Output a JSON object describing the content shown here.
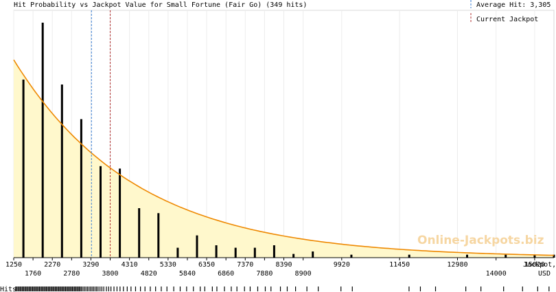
{
  "chart_data": {
    "type": "bar",
    "title": "Hit Probability vs Jackpot Value for Small Fortune (Fair Go) (349 hits)",
    "legend": {
      "position": "top-right",
      "items": [
        {
          "label": "Average Hit: 3,305",
          "color": "#3a7fd5",
          "style": "dashed"
        },
        {
          "label": "Current Jackpot",
          "color": "#b03030",
          "style": "dashed"
        }
      ]
    },
    "xlabel_line1": "Jackpot,",
    "xlabel_line2": "USD",
    "xlim": [
      1250,
      15530
    ],
    "ylim": [
      0,
      1
    ],
    "x_ticks_row1": [
      "1250",
      "2270",
      "3290",
      "4310",
      "5330",
      "6350",
      "7370",
      "8390",
      "9920",
      "11450",
      "12980",
      "15020"
    ],
    "x_ticks_row2": [
      "1760",
      "2780",
      "3800",
      "4820",
      "5840",
      "6860",
      "7880",
      "8900",
      "14000"
    ],
    "hits_label": "Hits",
    "watermark": "Online-Jackpots.biz",
    "average_hit": 3305,
    "current_jackpot": 3800,
    "colors": {
      "bar": "#000000",
      "curve": "#ee8800",
      "fill": "#fff8cc",
      "average_line": "#3a7fd5",
      "current_line": "#b03030"
    },
    "curve": {
      "start": 1.0,
      "decay_per_1000": 0.31
    },
    "bars": [
      {
        "x": 1505,
        "value": 0.72
      },
      {
        "x": 2015,
        "value": 0.95
      },
      {
        "x": 2525,
        "value": 0.7
      },
      {
        "x": 3035,
        "value": 0.56
      },
      {
        "x": 3545,
        "value": 0.37
      },
      {
        "x": 4055,
        "value": 0.36
      },
      {
        "x": 4565,
        "value": 0.2
      },
      {
        "x": 5075,
        "value": 0.18
      },
      {
        "x": 5585,
        "value": 0.04
      },
      {
        "x": 6095,
        "value": 0.09
      },
      {
        "x": 6605,
        "value": 0.05
      },
      {
        "x": 7115,
        "value": 0.04
      },
      {
        "x": 7625,
        "value": 0.04
      },
      {
        "x": 8135,
        "value": 0.05
      },
      {
        "x": 8645,
        "value": 0.015
      },
      {
        "x": 9155,
        "value": 0.025
      },
      {
        "x": 10175,
        "value": 0.012
      },
      {
        "x": 11705,
        "value": 0.012
      },
      {
        "x": 13235,
        "value": 0.012
      },
      {
        "x": 14255,
        "value": 0.012
      },
      {
        "x": 15020,
        "value": 0.012
      },
      {
        "x": 15530,
        "value": 0.012
      }
    ],
    "hit_values": [
      1300,
      1330,
      1360,
      1390,
      1420,
      1450,
      1480,
      1510,
      1540,
      1570,
      1600,
      1630,
      1660,
      1690,
      1720,
      1750,
      1780,
      1810,
      1840,
      1870,
      1900,
      1930,
      1960,
      1990,
      2020,
      2050,
      2080,
      2110,
      2140,
      2170,
      2200,
      2230,
      2260,
      2290,
      2320,
      2350,
      2380,
      2410,
      2440,
      2470,
      2500,
      2530,
      2560,
      2590,
      2620,
      2650,
      2680,
      2710,
      2740,
      2770,
      2800,
      2830,
      2860,
      2890,
      2920,
      2950,
      2980,
      3010,
      3040,
      3080,
      3120,
      3160,
      3200,
      3240,
      3280,
      3320,
      3360,
      3400,
      3440,
      3480,
      3530,
      3580,
      3630,
      3700,
      3760,
      3820,
      3900,
      3980,
      4060,
      4150,
      4250,
      4350,
      4470,
      4600,
      4720,
      4860,
      5000,
      5150,
      5300,
      5480,
      5650,
      5820,
      6000,
      6180,
      6300,
      6500,
      6620,
      6820,
      7000,
      7150,
      7350,
      7500,
      7700,
      7900,
      8050,
      8300,
      8480,
      8700,
      9000,
      9300,
      9900,
      10200,
      11700,
      12000,
      12400,
      13200,
      13600,
      14200,
      14700,
      15100,
      15400
    ]
  }
}
